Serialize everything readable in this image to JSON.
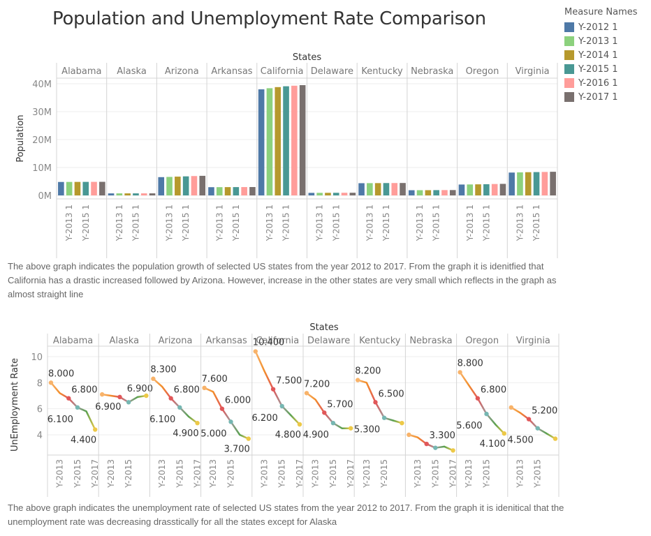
{
  "page": {
    "title": "Population and Unemployment Rate Comparison"
  },
  "legend": {
    "title": "Measure Names",
    "items": [
      {
        "label": "Y-2012 1",
        "color": "#4e79a7"
      },
      {
        "label": "Y-2013 1",
        "color": "#8cd17d"
      },
      {
        "label": "Y-2014 1",
        "color": "#b6992d"
      },
      {
        "label": "Y-2015 1",
        "color": "#499894"
      },
      {
        "label": "Y-2016 1",
        "color": "#ff9d9a"
      },
      {
        "label": "Y-2017 1",
        "color": "#79706e"
      }
    ]
  },
  "captions": {
    "population": "The above graph indicates the population growth of selected US states from the year 2012 to 2017. From the graph it is idenitfied that California has a drastic increased followed by Arizona. However, increase in the other states are very small which reflects in the graph as almost straight line",
    "unemployment": "The above graph indicates the unemployment rate of selected US states from the year 2012 to 2017. From the graph it is idenitical that the unemployment rate was decreasing drasstically for all the states except for Alaska"
  },
  "chart_data": [
    {
      "type": "bar",
      "title": "",
      "column_header": "States",
      "ylabel": "Population",
      "xlabel": "",
      "ylim": [
        0,
        42000000
      ],
      "yticks": [
        0,
        10000000,
        20000000,
        30000000,
        40000000
      ],
      "ytick_labels": [
        "0M",
        "10M",
        "20M",
        "30M",
        "40M"
      ],
      "grid": true,
      "legend_position": "right",
      "x_tick_labels": [
        "Y-2013 1",
        "Y-2015 1"
      ],
      "series_names": [
        "Y-2012 1",
        "Y-2013 1",
        "Y-2014 1",
        "Y-2015 1",
        "Y-2016 1",
        "Y-2017 1"
      ],
      "categories": [
        "Alabama",
        "Alaska",
        "Arizona",
        "Arkansas",
        "California",
        "Delaware",
        "Kentucky",
        "Nebraska",
        "Oregon",
        "Virginia"
      ],
      "values": {
        "Alabama": [
          4820000,
          4830000,
          4840000,
          4850000,
          4860000,
          4870000
        ],
        "Alaska": [
          730000,
          737000,
          737000,
          738000,
          741000,
          740000
        ],
        "Arizona": [
          6550000,
          6630000,
          6730000,
          6830000,
          6940000,
          7020000
        ],
        "Arkansas": [
          2950000,
          2960000,
          2970000,
          2980000,
          2990000,
          3000000
        ],
        "California": [
          38000000,
          38400000,
          38800000,
          39100000,
          39300000,
          39500000
        ],
        "Delaware": [
          917000,
          926000,
          935000,
          945000,
          953000,
          962000
        ],
        "Kentucky": [
          4380000,
          4400000,
          4410000,
          4430000,
          4440000,
          4450000
        ],
        "Nebraska": [
          1860000,
          1870000,
          1880000,
          1900000,
          1910000,
          1920000
        ],
        "Oregon": [
          3900000,
          3930000,
          3970000,
          4020000,
          4090000,
          4140000
        ],
        "Virginia": [
          8190000,
          8260000,
          8320000,
          8360000,
          8410000,
          8470000
        ]
      }
    },
    {
      "type": "line",
      "title": "",
      "column_header": "States",
      "ylabel": "UnEmployment Rate",
      "xlabel": "",
      "ylim": [
        2.5,
        10.8
      ],
      "yticks": [
        4,
        6,
        8,
        10
      ],
      "ytick_labels": [
        "4",
        "6",
        "8",
        "10"
      ],
      "grid": true,
      "x": [
        "Y-2012",
        "Y-2013",
        "Y-2014",
        "Y-2015",
        "Y-2016",
        "Y-2017"
      ],
      "categories": [
        "Alabama",
        "Alaska",
        "Arizona",
        "Arkansas",
        "California",
        "Delaware",
        "Kentucky",
        "Nebraska",
        "Oregon",
        "Virginia"
      ],
      "x_tick_labels": {
        "Alabama": [
          "Y-2013",
          "Y-2015",
          "Y-2017"
        ],
        "Alaska": [
          "Y-2013",
          "Y-2015"
        ],
        "Arizona": [
          "Y-2013",
          "Y-2015",
          "Y-2017"
        ],
        "Arkansas": [
          "Y-2013",
          "Y-2015"
        ],
        "California": [
          "Y-2013",
          "Y-2015",
          "Y-2017"
        ],
        "Delaware": [
          "Y-2013",
          "Y-2015",
          "Y-2017"
        ],
        "Kentucky": [
          "Y-2013",
          "Y-2015"
        ],
        "Nebraska": [
          "Y-2013",
          "Y-2015",
          "Y-2017"
        ],
        "Oregon": [
          "Y-2013",
          "Y-2015"
        ],
        "Virginia": [
          "Y-2013",
          "Y-2015"
        ]
      },
      "values": {
        "Alabama": [
          8.0,
          7.2,
          6.8,
          6.1,
          5.8,
          4.4
        ],
        "Alaska": [
          7.1,
          7.0,
          6.9,
          6.5,
          6.9,
          7.0
        ],
        "Arizona": [
          8.3,
          7.7,
          6.8,
          6.1,
          5.4,
          4.9
        ],
        "Arkansas": [
          7.6,
          7.3,
          6.0,
          5.0,
          4.0,
          3.7
        ],
        "California": [
          10.4,
          8.9,
          7.5,
          6.2,
          5.5,
          4.8
        ],
        "Delaware": [
          7.2,
          6.7,
          5.7,
          4.9,
          4.5,
          4.5
        ],
        "Kentucky": [
          8.2,
          8.0,
          6.5,
          5.3,
          5.1,
          4.9
        ],
        "Nebraska": [
          4.0,
          3.8,
          3.3,
          3.0,
          3.1,
          2.8
        ],
        "Oregon": [
          8.8,
          7.8,
          6.8,
          5.6,
          4.8,
          4.1
        ],
        "Virginia": [
          6.1,
          5.7,
          5.2,
          4.5,
          4.1,
          3.7
        ]
      },
      "data_labels": {
        "Alabama": [
          {
            "i": 0,
            "text": "8.000"
          },
          {
            "i": 2,
            "text": "6.800"
          },
          {
            "i": 3,
            "text": "6.100"
          },
          {
            "i": 5,
            "text": "4.400"
          }
        ],
        "Alaska": [
          {
            "i": 2,
            "text": "6.900"
          },
          {
            "i": 4,
            "text": "6.900"
          }
        ],
        "Arizona": [
          {
            "i": 0,
            "text": "8.300"
          },
          {
            "i": 2,
            "text": "6.800"
          },
          {
            "i": 3,
            "text": "6.100"
          },
          {
            "i": 5,
            "text": "4.900"
          }
        ],
        "Arkansas": [
          {
            "i": 0,
            "text": "7.600"
          },
          {
            "i": 2,
            "text": "6.000"
          },
          {
            "i": 3,
            "text": "5.000"
          },
          {
            "i": 5,
            "text": "3.700"
          }
        ],
        "California": [
          {
            "i": 0,
            "text": "10.400"
          },
          {
            "i": 2,
            "text": "7.500"
          },
          {
            "i": 3,
            "text": "6.200"
          },
          {
            "i": 5,
            "text": "4.800"
          }
        ],
        "Delaware": [
          {
            "i": 0,
            "text": "7.200"
          },
          {
            "i": 2,
            "text": "5.700"
          },
          {
            "i": 3,
            "text": "4.900"
          }
        ],
        "Kentucky": [
          {
            "i": 0,
            "text": "8.200"
          },
          {
            "i": 2,
            "text": "6.500"
          },
          {
            "i": 3,
            "text": "5.300"
          }
        ],
        "Nebraska": [
          {
            "i": 2,
            "text": "3.300"
          }
        ],
        "Oregon": [
          {
            "i": 0,
            "text": "8.800"
          },
          {
            "i": 2,
            "text": "6.800"
          },
          {
            "i": 3,
            "text": "5.600"
          },
          {
            "i": 5,
            "text": "4.100"
          }
        ],
        "Virginia": [
          {
            "i": 2,
            "text": "5.200"
          },
          {
            "i": 3,
            "text": "4.500"
          }
        ]
      },
      "line_gradient_colors": [
        "#f8b36a",
        "#f28e2b",
        "#e15759",
        "#9c9c9c",
        "#59a14f",
        "#edc948"
      ],
      "point_colors": {
        "0": "#f8b36a",
        "2": "#e15759",
        "3": "#76b7b2",
        "5": "#edc948"
      }
    }
  ]
}
